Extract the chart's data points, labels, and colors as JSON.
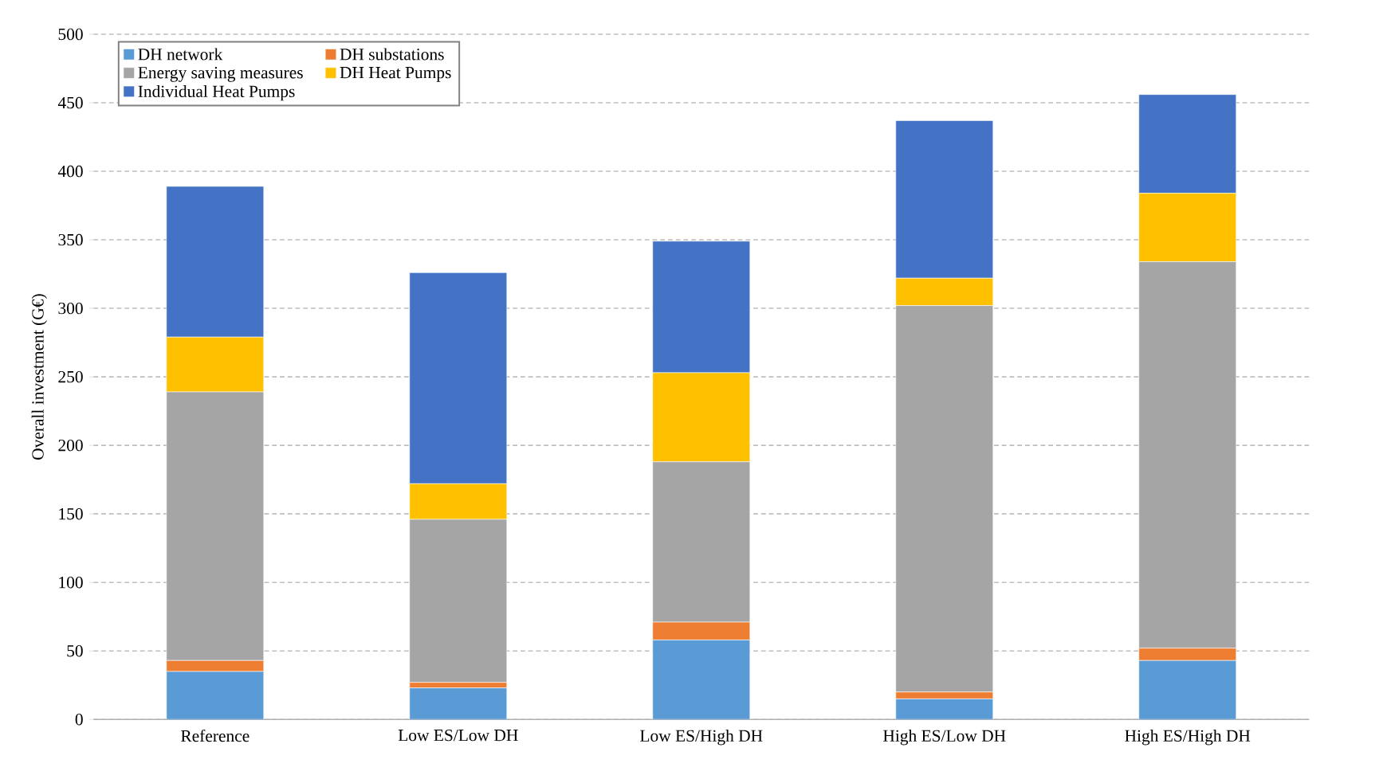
{
  "chart_data": {
    "type": "bar",
    "stacked": true,
    "ylabel": "Overall investment (G€)",
    "categories": [
      "Reference",
      "Low ES/Low DH",
      "Low ES/High DH",
      "High ES/Low DH",
      "High ES/High DH"
    ],
    "series": [
      {
        "name": "DH network",
        "color": "#5b9bd5",
        "values": [
          35,
          23,
          58,
          15,
          43
        ]
      },
      {
        "name": "DH substations",
        "color": "#ed7d31",
        "values": [
          8,
          4,
          13,
          5,
          9
        ]
      },
      {
        "name": "Energy saving measures",
        "color": "#a5a5a5",
        "values": [
          196,
          119,
          117,
          282,
          282
        ]
      },
      {
        "name": "DH Heat Pumps",
        "color": "#ffc000",
        "values": [
          40,
          26,
          65,
          20,
          50
        ]
      },
      {
        "name": "Individual Heat Pumps",
        "color": "#4472c4",
        "values": [
          110,
          154,
          96,
          115,
          72
        ]
      }
    ],
    "ylim": [
      0,
      500
    ],
    "yticks": [
      0,
      50,
      100,
      150,
      200,
      250,
      300,
      350,
      400,
      450,
      500
    ],
    "grid": "y",
    "legend": "top left"
  }
}
